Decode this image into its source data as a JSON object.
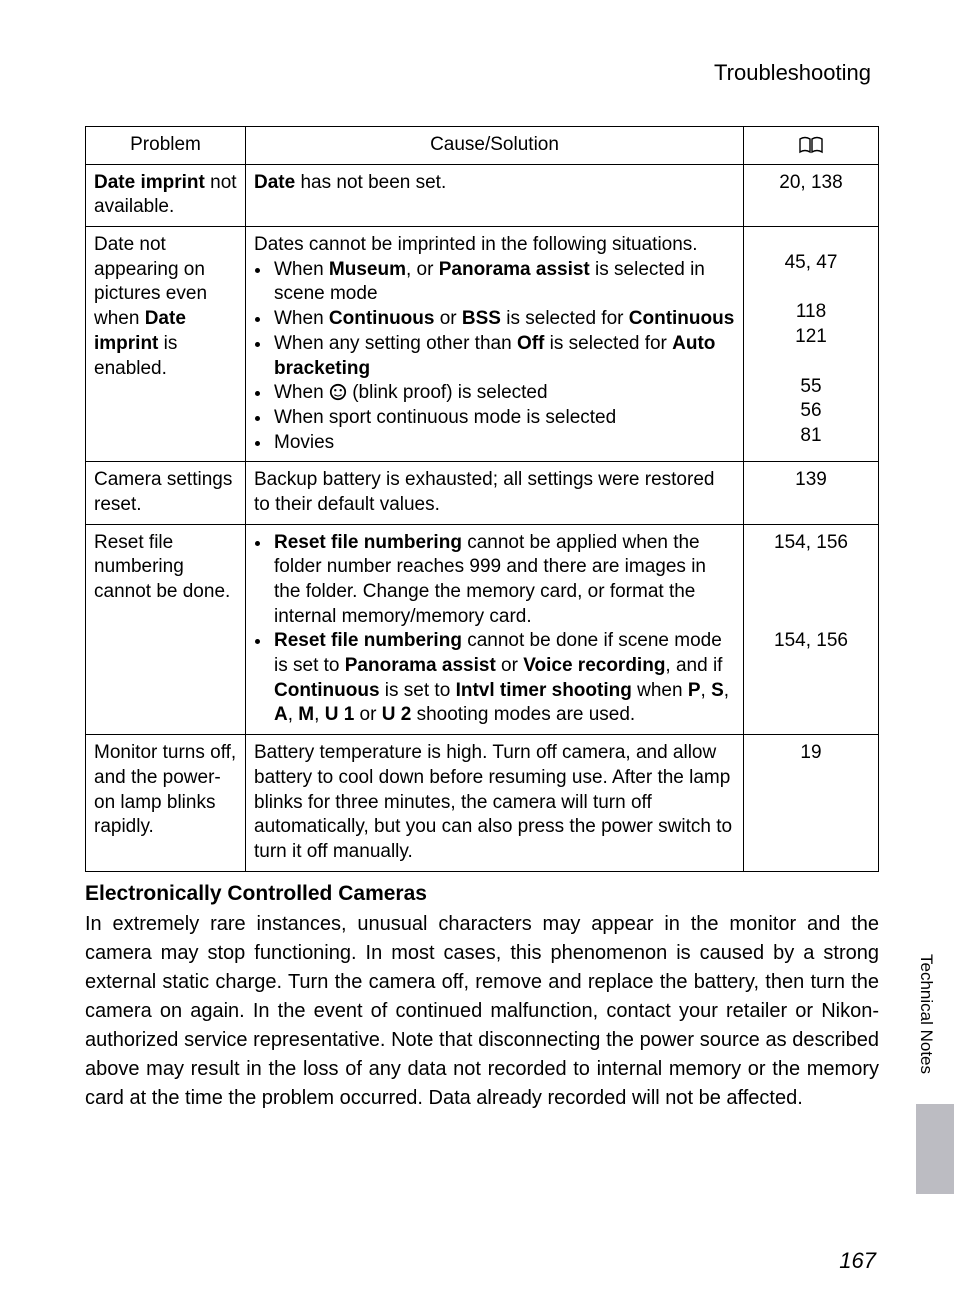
{
  "header": {
    "title": "Troubleshooting"
  },
  "table": {
    "headers": {
      "problem": "Problem",
      "cause": "Cause/Solution"
    },
    "rows": [
      {
        "problem_html": "<b>Date imprint</b> not available.",
        "cause_html": "<b>Date</b> has not been set.",
        "pages_html": "20, 138"
      },
      {
        "problem_html": "Date not appearing on pictures even when <b>Date imprint</b> is enabled.",
        "cause_html": "Dates cannot be imprinted in the following situations.<ul class='inner'><li>When <b>Museum</b>, or <b>Panorama assist</b> is selected in scene mode</li><li>When <b>Continuous</b> or <b>BSS</b> is selected for <b>Continuous</b></li><li>When any setting other than <b>Off</b> is selected for <b>Auto bracketing</b></li><li>When <span class='face-icon' data-name='blink-proof-icon' data-interactable='false'><svg viewBox='0 0 20 20'><circle cx='10' cy='10' r='9' fill='#000'/><circle cx='10' cy='10' r='7' fill='#fff'/><circle cx='7' cy='8' r='1.3' fill='#000'/><circle cx='13' cy='8' r='1.3' fill='#000'/><path d='M6 13 Q10 16 14 13' stroke='#000' stroke-width='1.3' fill='none'/></svg></span> (blink proof) is selected</li><li>When sport continuous mode is selected</li><li>Movies</li></ul>",
        "pages_html": "<div class='page-multi'>45, 47<br><br>118<br>121<br><br>55<br>56<br>81</div>"
      },
      {
        "problem_html": "Camera settings reset.",
        "cause_html": "Backup battery is exhausted; all settings were restored to their default values.",
        "pages_html": "139"
      },
      {
        "problem_html": "Reset file numbering cannot be done.",
        "cause_html": "<ul class='inner'><li><b>Reset file numbering</b> cannot be applied when the folder number reaches 999 and there are images in the folder. Change the memory card, or format the internal memory/memory card.</li><li><b>Reset file numbering</b> cannot be done if scene mode is set to <b>Panorama assist</b> or <b>Voice recording</b>, and if <b>Continuous</b> is set to <b>Intvl timer shooting</b> when <span class='mode-letter'>P</span>, <span class='mode-letter'>S</span>, <span class='mode-letter'>A</span>, <span class='mode-letter'>M</span>, <span class='mode-letter'>U 1</span> or <span class='mode-letter'>U 2</span> shooting modes are used.</li></ul>",
        "pages_html": "<div style='text-align:center'>154, 156<br><br><br><br>154, 156</div>"
      },
      {
        "problem_html": "Monitor turns off, and the power-on lamp blinks rapidly.",
        "cause_html": "Battery temperature is high. Turn off camera, and allow battery to cool down before resuming use. After the lamp blinks for three minutes, the camera will turn off automatically, but you can also press the power switch to turn it off manually.",
        "pages_html": "19"
      }
    ]
  },
  "section": {
    "title": "Electronically Controlled Cameras",
    "body": "In extremely rare instances, unusual characters may appear in the monitor and the camera may stop functioning. In most cases, this phenomenon is caused by a strong external static charge. Turn the camera off, remove and replace the battery, then turn the camera on again. In the event of continued malfunction, contact your retailer or Nikon-authorized service representative. Note that disconnecting the power source as described above may result in the loss of any data not recorded to internal memory or the memory card at the time the problem occurred. Data already recorded will not be affected."
  },
  "sidetab": {
    "label": "Technical Notes"
  },
  "page_number": "167"
}
